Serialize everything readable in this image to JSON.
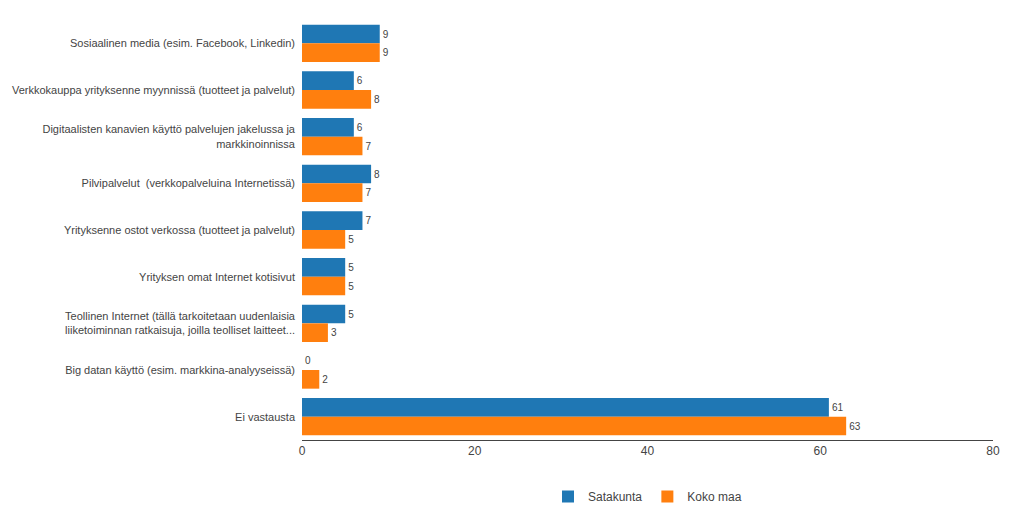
{
  "chart_data": {
    "type": "bar",
    "orientation": "horizontal",
    "categories": [
      "Sosiaalinen media (esim. Facebook, Linkedin)",
      "Verkkokauppa yrityksenne myynnissä (tuotteet ja palvelut)",
      "Digitaalisten kanavien käyttö palvelujen jakelussa ja\nmarkkinoinnissa",
      "Pilvipalvelut  (verkkopalveluina Internetissä)",
      "Yrityksenne ostot verkossa (tuotteet ja palvelut)",
      "Yrityksen omat Internet kotisivut",
      "Teollinen Internet (tällä tarkoitetaan uudenlaisia\nliiketoiminnan ratkaisuja, joilla teolliset laitteet...",
      "Big datan käyttö (esim. markkina-analyyseissä)",
      "Ei vastausta"
    ],
    "series": [
      {
        "name": "Satakunta",
        "values": [
          9,
          6,
          6,
          8,
          7,
          5,
          5,
          0,
          61
        ]
      },
      {
        "name": "Koko maa",
        "values": [
          9,
          8,
          7,
          7,
          5,
          5,
          3,
          2,
          63
        ]
      }
    ],
    "xlim": [
      0,
      80
    ],
    "xticks": [
      0,
      20,
      40,
      60,
      80
    ],
    "grid": false,
    "legend": "bottom",
    "data_labels": true
  }
}
